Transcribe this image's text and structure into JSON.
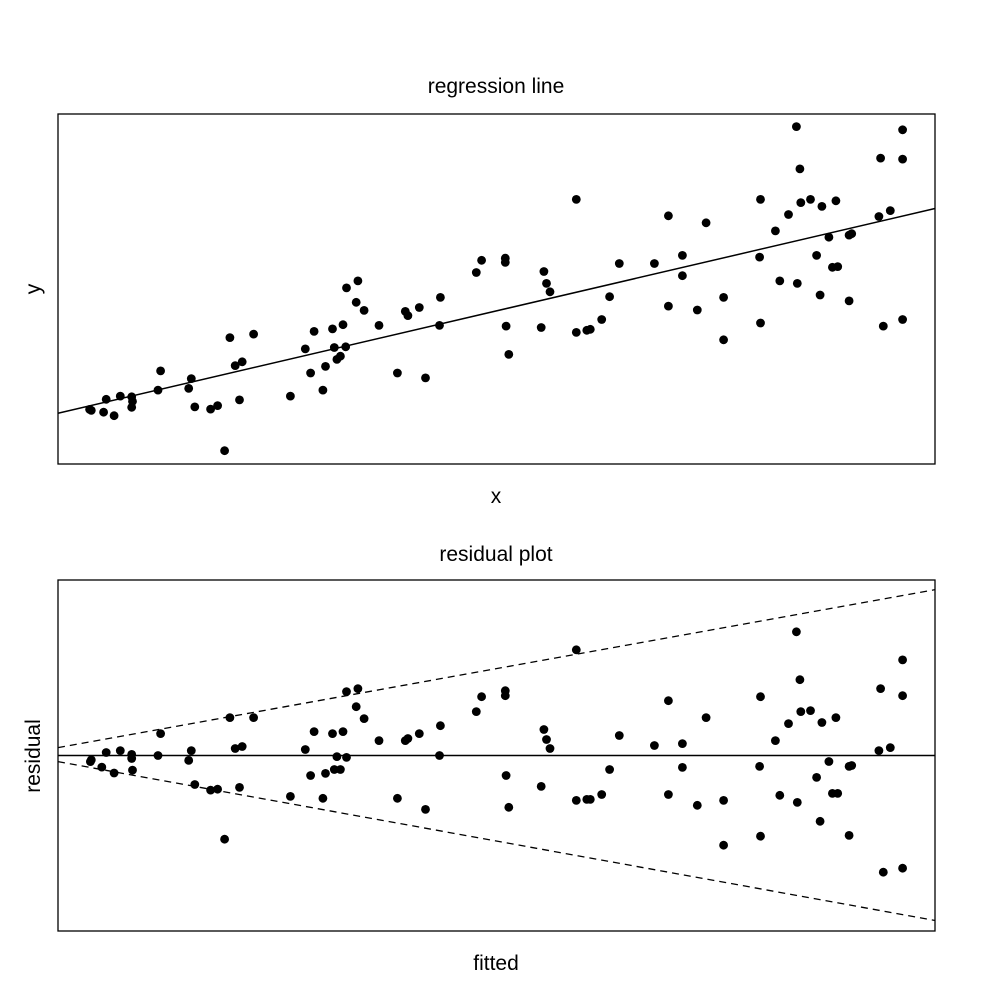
{
  "chart_data": [
    {
      "type": "scatter",
      "title": "regression line",
      "xlabel": "x",
      "ylabel": "y",
      "axes_shown": false,
      "xlim": [
        0,
        100
      ],
      "ylim": [
        0,
        100
      ],
      "fit_line": {
        "x": [
          0,
          100
        ],
        "y": [
          14.5,
          73
        ]
      },
      "points": [
        [
          3.8,
          15.3
        ],
        [
          3.6,
          15.6
        ],
        [
          5.2,
          14.8
        ],
        [
          5.5,
          18.5
        ],
        [
          6.4,
          13.8
        ],
        [
          7.1,
          19.4
        ],
        [
          8.4,
          16.2
        ],
        [
          8.5,
          17.9
        ],
        [
          8.4,
          19.2
        ],
        [
          11.4,
          21.1
        ],
        [
          11.7,
          26.6
        ],
        [
          14.9,
          21.6
        ],
        [
          15.2,
          24.4
        ],
        [
          15.6,
          16.3
        ],
        [
          17.4,
          15.7
        ],
        [
          18.2,
          16.7
        ],
        [
          19.0,
          3.8
        ],
        [
          19.6,
          36.1
        ],
        [
          20.2,
          28.1
        ],
        [
          20.7,
          18.3
        ],
        [
          21.0,
          29.2
        ],
        [
          22.3,
          37.1
        ],
        [
          26.5,
          19.4
        ],
        [
          28.2,
          32.9
        ],
        [
          28.8,
          26.0
        ],
        [
          29.2,
          37.9
        ],
        [
          30.2,
          21.1
        ],
        [
          30.5,
          27.9
        ],
        [
          31.3,
          38.6
        ],
        [
          31.5,
          33.3
        ],
        [
          31.8,
          29.9
        ],
        [
          32.2,
          30.8
        ],
        [
          32.8,
          33.5
        ],
        [
          32.5,
          39.8
        ],
        [
          32.9,
          50.3
        ],
        [
          34.0,
          46.2
        ],
        [
          34.2,
          52.3
        ],
        [
          34.9,
          43.9
        ],
        [
          36.6,
          39.6
        ],
        [
          38.7,
          26.0
        ],
        [
          39.6,
          43.6
        ],
        [
          39.9,
          42.4
        ],
        [
          41.2,
          44.7
        ],
        [
          41.9,
          24.6
        ],
        [
          43.6,
          47.6
        ],
        [
          43.5,
          39.6
        ],
        [
          47.7,
          54.7
        ],
        [
          48.3,
          58.2
        ],
        [
          51.0,
          57.6
        ],
        [
          51.0,
          58.8
        ],
        [
          51.1,
          39.4
        ],
        [
          51.4,
          31.3
        ],
        [
          55.1,
          39.0
        ],
        [
          55.4,
          55.0
        ],
        [
          55.7,
          51.6
        ],
        [
          56.1,
          49.2
        ],
        [
          59.1,
          75.6
        ],
        [
          59.1,
          37.6
        ],
        [
          60.3,
          38.2
        ],
        [
          60.7,
          38.5
        ],
        [
          62.0,
          41.3
        ],
        [
          62.9,
          47.8
        ],
        [
          64.0,
          57.3
        ],
        [
          68.0,
          57.3
        ],
        [
          69.6,
          70.9
        ],
        [
          69.6,
          45.1
        ],
        [
          71.2,
          59.6
        ],
        [
          71.2,
          53.8
        ],
        [
          72.9,
          44.0
        ],
        [
          73.9,
          68.9
        ],
        [
          75.9,
          47.6
        ],
        [
          75.9,
          35.5
        ],
        [
          80.1,
          75.6
        ],
        [
          80.0,
          59.1
        ],
        [
          80.1,
          40.3
        ],
        [
          81.8,
          66.6
        ],
        [
          82.3,
          52.3
        ],
        [
          83.3,
          71.3
        ],
        [
          84.2,
          96.4
        ],
        [
          84.3,
          51.6
        ],
        [
          84.6,
          84.3
        ],
        [
          84.7,
          74.7
        ],
        [
          85.8,
          75.6
        ],
        [
          86.5,
          59.6
        ],
        [
          87.1,
          73.6
        ],
        [
          86.9,
          48.3
        ],
        [
          87.9,
          64.8
        ],
        [
          88.3,
          56.2
        ],
        [
          88.7,
          75.2
        ],
        [
          88.9,
          56.4
        ],
        [
          90.2,
          65.4
        ],
        [
          90.5,
          65.8
        ],
        [
          90.2,
          46.6
        ],
        [
          93.6,
          70.7
        ],
        [
          93.8,
          87.4
        ],
        [
          94.1,
          39.4
        ],
        [
          94.9,
          72.4
        ],
        [
          96.3,
          95.5
        ],
        [
          96.3,
          87.1
        ],
        [
          96.3,
          41.3
        ]
      ]
    },
    {
      "type": "scatter",
      "title": "residual plot",
      "xlabel": "fitted",
      "ylabel": "residual",
      "axes_shown": false,
      "xlim": [
        0,
        100
      ],
      "ylim": [
        -100,
        100
      ],
      "reference_line": {
        "y": 0
      },
      "bands": [
        {
          "style": "dashed",
          "x": [
            0,
            100
          ],
          "y": [
            4.5,
            94.5
          ]
        },
        {
          "style": "dashed",
          "x": [
            0,
            100
          ],
          "y": [
            -3.5,
            -94
          ]
        }
      ],
      "points": [
        [
          3.8,
          -2.5
        ],
        [
          3.7,
          -3.5
        ],
        [
          5.0,
          -6.6
        ],
        [
          5.5,
          1.7
        ],
        [
          6.4,
          -10.0
        ],
        [
          7.1,
          2.8
        ],
        [
          8.4,
          0.6
        ],
        [
          8.4,
          -1.7
        ],
        [
          8.5,
          -8.3
        ],
        [
          11.4,
          0.0
        ],
        [
          11.7,
          12.5
        ],
        [
          14.9,
          -2.8
        ],
        [
          15.2,
          2.8
        ],
        [
          15.6,
          -16.5
        ],
        [
          17.4,
          -19.7
        ],
        [
          18.2,
          -19.2
        ],
        [
          19.0,
          -47.7
        ],
        [
          19.6,
          21.6
        ],
        [
          20.2,
          4.0
        ],
        [
          20.7,
          -18.2
        ],
        [
          21.0,
          5.1
        ],
        [
          22.3,
          21.6
        ],
        [
          26.5,
          -23.3
        ],
        [
          28.2,
          3.4
        ],
        [
          28.8,
          -11.4
        ],
        [
          29.2,
          13.6
        ],
        [
          30.2,
          -24.4
        ],
        [
          30.5,
          -10.2
        ],
        [
          31.3,
          12.5
        ],
        [
          31.8,
          -0.6
        ],
        [
          31.5,
          -8.0
        ],
        [
          32.2,
          -8.0
        ],
        [
          32.9,
          -1.1
        ],
        [
          32.5,
          13.6
        ],
        [
          32.9,
          36.4
        ],
        [
          34.0,
          27.8
        ],
        [
          34.2,
          38.1
        ],
        [
          34.9,
          21.0
        ],
        [
          36.6,
          8.5
        ],
        [
          38.7,
          -24.4
        ],
        [
          39.6,
          8.5
        ],
        [
          39.9,
          9.7
        ],
        [
          41.2,
          12.5
        ],
        [
          41.9,
          -30.7
        ],
        [
          43.6,
          17.0
        ],
        [
          43.5,
          0.0
        ],
        [
          47.7,
          25.0
        ],
        [
          48.3,
          33.5
        ],
        [
          51.0,
          34.1
        ],
        [
          51.0,
          36.9
        ],
        [
          51.1,
          -11.4
        ],
        [
          51.4,
          -29.5
        ],
        [
          55.1,
          -17.6
        ],
        [
          55.4,
          14.8
        ],
        [
          55.7,
          9.1
        ],
        [
          56.1,
          4.0
        ],
        [
          59.1,
          60.2
        ],
        [
          59.1,
          -25.6
        ],
        [
          60.3,
          -25.0
        ],
        [
          60.7,
          -25.0
        ],
        [
          62.0,
          -22.2
        ],
        [
          62.9,
          -8.0
        ],
        [
          64.0,
          11.4
        ],
        [
          68.0,
          5.7
        ],
        [
          69.6,
          31.2
        ],
        [
          69.6,
          -22.2
        ],
        [
          71.2,
          6.8
        ],
        [
          71.2,
          -6.8
        ],
        [
          72.9,
          -28.4
        ],
        [
          73.9,
          21.6
        ],
        [
          75.9,
          -51.1
        ],
        [
          75.9,
          -25.6
        ],
        [
          80.1,
          33.5
        ],
        [
          80.0,
          -6.2
        ],
        [
          80.1,
          -46.0
        ],
        [
          81.8,
          8.5
        ],
        [
          82.3,
          -22.7
        ],
        [
          83.3,
          18.2
        ],
        [
          84.2,
          70.5
        ],
        [
          84.3,
          -26.7
        ],
        [
          84.6,
          43.2
        ],
        [
          84.7,
          25.0
        ],
        [
          85.8,
          25.6
        ],
        [
          86.5,
          -12.5
        ],
        [
          87.1,
          18.8
        ],
        [
          86.9,
          -37.5
        ],
        [
          87.9,
          -3.4
        ],
        [
          88.3,
          -21.6
        ],
        [
          88.7,
          21.6
        ],
        [
          88.9,
          -21.6
        ],
        [
          90.2,
          -6.2
        ],
        [
          90.5,
          -5.7
        ],
        [
          90.2,
          -45.5
        ],
        [
          93.6,
          2.8
        ],
        [
          93.8,
          38.1
        ],
        [
          94.1,
          -66.5
        ],
        [
          94.9,
          4.5
        ],
        [
          96.3,
          54.5
        ],
        [
          96.3,
          34.1
        ],
        [
          96.3,
          -64.2
        ]
      ]
    }
  ]
}
